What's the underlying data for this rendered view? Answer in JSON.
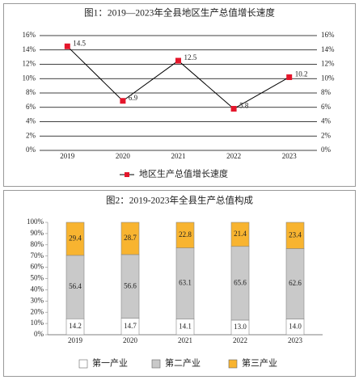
{
  "chart_data": [
    {
      "type": "line",
      "title": "图1：2019—2023年全县地区生产总值增长速度",
      "categories": [
        "2019",
        "2020",
        "2021",
        "2022",
        "2023"
      ],
      "series": [
        {
          "name": "地区生产总值增长速度",
          "color": "#000000",
          "marker_color": "#e4162b",
          "values": [
            14.5,
            6.9,
            12.5,
            5.8,
            10.2
          ]
        }
      ],
      "ylim": [
        0,
        16
      ],
      "yticks": [
        {
          "value": 0,
          "label": "0%"
        },
        {
          "value": 2,
          "label": "2%"
        },
        {
          "value": 4,
          "label": "4%"
        },
        {
          "value": 6,
          "label": "6%"
        },
        {
          "value": 8,
          "label": "8%"
        },
        {
          "value": 10,
          "label": "10%"
        },
        {
          "value": 12,
          "label": "12%"
        },
        {
          "value": 14,
          "label": "14%"
        },
        {
          "value": 16,
          "label": "16%"
        }
      ],
      "y2lim": [
        0,
        16
      ],
      "y2ticks": [
        {
          "value": 0,
          "label": "0%"
        },
        {
          "value": 2,
          "label": "2%"
        },
        {
          "value": 4,
          "label": "4%"
        },
        {
          "value": 6,
          "label": "6%"
        },
        {
          "value": 8,
          "label": "8%"
        },
        {
          "value": 10,
          "label": "10%"
        },
        {
          "value": 12,
          "label": "12%"
        },
        {
          "value": 14,
          "label": "14%"
        },
        {
          "value": 16,
          "label": "16%"
        }
      ],
      "grid": true,
      "legend": "bottom"
    },
    {
      "type": "stacked_bar",
      "title": "图2：2019-2023年全县生产总值构成",
      "categories": [
        "2019",
        "2020",
        "2021",
        "2022",
        "2023"
      ],
      "series": [
        {
          "name": "第一产业",
          "color": "#ffffff",
          "values": [
            14.2,
            14.7,
            14.1,
            13.0,
            14.0
          ],
          "value_labels": [
            "14.2",
            "14.7",
            "14.1",
            "13.0",
            "14.0"
          ]
        },
        {
          "name": "第二产业",
          "color": "#c9c9c9",
          "values": [
            56.4,
            56.6,
            63.1,
            65.6,
            62.6
          ],
          "value_labels": [
            "56.4",
            "56.6",
            "63.1",
            "65.6",
            "62.6"
          ]
        },
        {
          "name": "第三产业",
          "color": "#f8b430",
          "values": [
            29.4,
            28.7,
            22.8,
            21.4,
            23.4
          ],
          "value_labels": [
            "29.4",
            "28.7",
            "22.8",
            "21.4",
            "23.4"
          ]
        }
      ],
      "ylim": [
        0,
        100
      ],
      "yticks": [
        {
          "value": 0,
          "label": "0%"
        },
        {
          "value": 10,
          "label": "10%"
        },
        {
          "value": 20,
          "label": "20%"
        },
        {
          "value": 30,
          "label": "30%"
        },
        {
          "value": 40,
          "label": "40%"
        },
        {
          "value": 50,
          "label": "50%"
        },
        {
          "value": 60,
          "label": "60%"
        },
        {
          "value": 70,
          "label": "70%"
        },
        {
          "value": 80,
          "label": "80%"
        },
        {
          "value": 90,
          "label": "90%"
        },
        {
          "value": 100,
          "label": "100%"
        }
      ],
      "grid": false,
      "legend": "bottom"
    }
  ]
}
